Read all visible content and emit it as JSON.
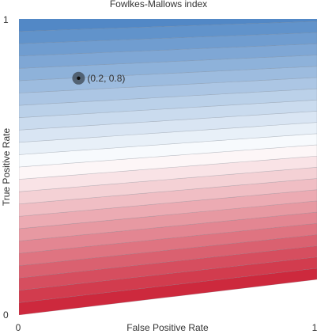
{
  "chart_data": {
    "type": "heatmap",
    "title": "Fowlkes-Mallows index",
    "xlabel": "False Positive Rate",
    "ylabel": "True Positive Rate",
    "xlim": [
      0,
      1
    ],
    "ylim": [
      0,
      1
    ],
    "x_ticks": [
      "0",
      "1"
    ],
    "y_ticks": [
      "0",
      "1"
    ],
    "grid": false,
    "legend": "none",
    "colormap": {
      "low": "#cb2035",
      "mid": "#ffffff",
      "high": "#4a83c3"
    },
    "contour_levels": 24,
    "marker": {
      "x": 0.2,
      "y": 0.8,
      "label": "(0.2, 0.8)"
    }
  }
}
